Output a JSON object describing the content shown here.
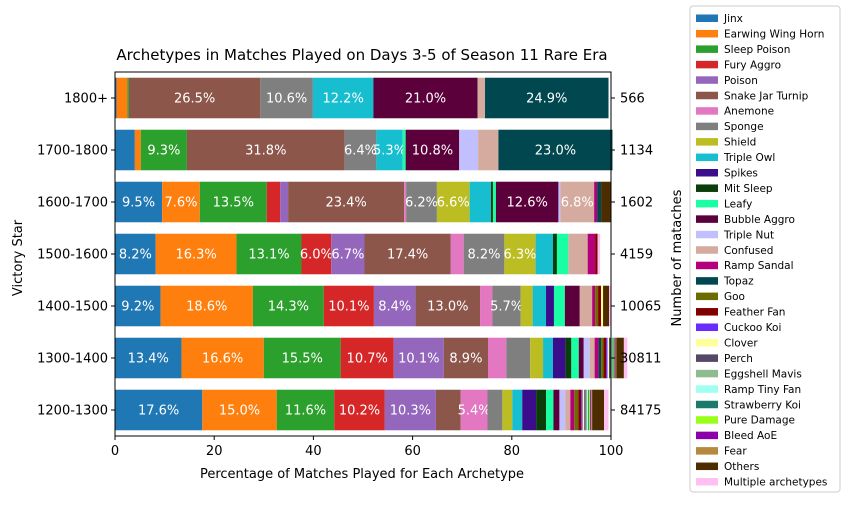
{
  "chart_data": {
    "type": "bar",
    "orientation": "horizontal",
    "stacked": true,
    "title": "Archetypes in Matches Played on Days 3-5 of Season 11 Rare Era",
    "xlabel": "Percentage of Matches Played for Each Archetype",
    "ylabel": "Victory Star",
    "y2label": "Number of mataches",
    "xlim": [
      0,
      100
    ],
    "xticks": [
      "0",
      "20",
      "40",
      "60",
      "80",
      "100"
    ],
    "categories": [
      "1200-1300",
      "1300-1400",
      "1400-1500",
      "1500-1600",
      "1600-1700",
      "1700-1800",
      "1800+"
    ],
    "match_counts": [
      "84175",
      "30811",
      "10065",
      "4159",
      "1602",
      "1134",
      "566"
    ],
    "legend_position": "outside-right",
    "grid": false,
    "series": [
      {
        "name": "Jinx",
        "color": "#1f77b4",
        "values": [
          17.6,
          13.4,
          9.2,
          8.2,
          9.5,
          4.0,
          0.3
        ],
        "labels": [
          "17.6%",
          "13.4%",
          "9.2%",
          "8.2%",
          "9.5%",
          "",
          ""
        ]
      },
      {
        "name": "Earwing Wing Horn",
        "color": "#ff7f0e",
        "values": [
          15.0,
          16.6,
          18.6,
          16.3,
          7.6,
          1.2,
          2.2
        ],
        "labels": [
          "15.0%",
          "16.6%",
          "18.6%",
          "16.3%",
          "7.6%",
          "",
          ""
        ]
      },
      {
        "name": "Sleep Poison",
        "color": "#2ca02c",
        "values": [
          11.6,
          15.5,
          14.3,
          13.1,
          13.5,
          9.3,
          0.3
        ],
        "labels": [
          "11.6%",
          "15.5%",
          "14.3%",
          "13.1%",
          "13.5%",
          "9.3%",
          ""
        ]
      },
      {
        "name": "Fury Aggro",
        "color": "#d62728",
        "values": [
          10.2,
          10.7,
          10.1,
          6.0,
          2.7,
          0.0,
          0.0
        ],
        "labels": [
          "10.2%",
          "10.7%",
          "10.1%",
          "6.0%",
          "",
          "",
          ""
        ]
      },
      {
        "name": "Poison",
        "color": "#9467bd",
        "values": [
          10.3,
          10.1,
          8.4,
          6.7,
          1.6,
          0.0,
          0.0
        ],
        "labels": [
          "10.3%",
          "10.1%",
          "8.4%",
          "6.7%",
          "",
          "",
          ""
        ]
      },
      {
        "name": "Snake Jar Turnip",
        "color": "#8c564b",
        "values": [
          5.0,
          8.9,
          13.0,
          17.4,
          23.4,
          31.8,
          26.5
        ],
        "labels": [
          "",
          "8.9%",
          "13.0%",
          "17.4%",
          "23.4%",
          "31.8%",
          "26.5%"
        ]
      },
      {
        "name": "Anemone",
        "color": "#e377c2",
        "values": [
          5.4,
          3.7,
          2.5,
          2.6,
          0.4,
          0.0,
          0.0
        ],
        "labels": [
          "5.4%",
          "",
          "",
          "",
          "",
          "",
          ""
        ]
      },
      {
        "name": "Sponge",
        "color": "#7f7f7f",
        "values": [
          3.0,
          4.8,
          5.7,
          8.2,
          6.2,
          6.4,
          10.6
        ],
        "labels": [
          "",
          "",
          "5.7%",
          "8.2%",
          "6.2%",
          "6.4%",
          "10.6%"
        ]
      },
      {
        "name": "Shield",
        "color": "#bcbd22",
        "values": [
          2.0,
          2.6,
          2.4,
          6.3,
          6.6,
          0.0,
          0.0
        ],
        "labels": [
          "",
          "",
          "",
          "6.3%",
          "6.6%",
          "",
          ""
        ]
      },
      {
        "name": "Triple Owl",
        "color": "#17becf",
        "values": [
          2.0,
          2.0,
          2.7,
          3.5,
          4.3,
          5.3,
          12.2
        ],
        "labels": [
          "",
          "",
          "",
          "",
          "",
          "5.3%",
          "12.2%"
        ]
      },
      {
        "name": "Spikes",
        "color": "#3b0d8c",
        "values": [
          2.8,
          2.5,
          1.6,
          0.0,
          0.0,
          0.0,
          0.0
        ],
        "labels": [
          "",
          "",
          "",
          "",
          "",
          "",
          ""
        ]
      },
      {
        "name": "Mit Sleep",
        "color": "#0b3d0b",
        "values": [
          2.0,
          1.2,
          0.0,
          0.8,
          0.4,
          0.0,
          0.0
        ],
        "labels": [
          "",
          "",
          "",
          "",
          "",
          "",
          ""
        ]
      },
      {
        "name": "Leafy",
        "color": "#1affa3",
        "values": [
          1.5,
          1.5,
          2.2,
          2.3,
          0.6,
          0.6,
          0.0
        ],
        "labels": [
          "",
          "",
          "",
          "",
          "",
          "",
          ""
        ]
      },
      {
        "name": "Bubble Aggro",
        "color": "#5c003b",
        "values": [
          1.2,
          1.0,
          3.0,
          0.0,
          12.6,
          10.8,
          21.0
        ],
        "labels": [
          "",
          "",
          "",
          "",
          "12.6%",
          "10.8%",
          "21.0%"
        ]
      },
      {
        "name": "Triple Nut",
        "color": "#c2bfff",
        "values": [
          1.2,
          1.2,
          0.0,
          0.0,
          0.4,
          3.8,
          0.0
        ],
        "labels": [
          "",
          "",
          "",
          "",
          "",
          "",
          ""
        ]
      },
      {
        "name": "Confused",
        "color": "#d5aa9f",
        "values": [
          1.0,
          1.0,
          2.5,
          3.9,
          6.8,
          4.1,
          1.5
        ],
        "labels": [
          "",
          "",
          "",
          "",
          "6.8%",
          "",
          ""
        ]
      },
      {
        "name": "Ramp Sandal",
        "color": "#b5007c",
        "values": [
          0.8,
          0.8,
          0.6,
          1.5,
          0.6,
          0.0,
          0.0
        ],
        "labels": [
          "",
          "",
          "",
          "",
          "",
          "",
          ""
        ]
      },
      {
        "name": "Topaz",
        "color": "#00474f",
        "values": [
          0.0,
          0.5,
          0.0,
          0.0,
          0.8,
          23.0,
          24.9
        ],
        "labels": [
          "",
          "",
          "",
          "",
          "",
          "23.0%",
          "24.9%"
        ]
      },
      {
        "name": "Goo",
        "color": "#6b6b00",
        "values": [
          0.8,
          0.5,
          0.6,
          0.0,
          0.0,
          0.0,
          0.0
        ],
        "labels": [
          "",
          "",
          "",
          "",
          "",
          "",
          ""
        ]
      },
      {
        "name": "Feather Fan",
        "color": "#800000",
        "values": [
          0.6,
          0.5,
          0.6,
          0.5,
          0.0,
          0.0,
          0.0
        ],
        "labels": [
          "",
          "",
          "",
          "",
          "",
          "",
          ""
        ]
      },
      {
        "name": "Cuckoo Koi",
        "color": "#6a2bff",
        "values": [
          0.3,
          0.3,
          0.0,
          0.0,
          0.0,
          0.0,
          0.0
        ],
        "labels": [
          "",
          "",
          "",
          "",
          "",
          "",
          ""
        ]
      },
      {
        "name": "Clover",
        "color": "#ffff99",
        "values": [
          0.3,
          0.3,
          0.4,
          0.0,
          0.0,
          0.0,
          0.0
        ],
        "labels": [
          "",
          "",
          "",
          "",
          "",
          "",
          ""
        ]
      },
      {
        "name": "Perch",
        "color": "#574766",
        "values": [
          0.3,
          0.3,
          0.0,
          0.0,
          0.0,
          0.0,
          0.0
        ],
        "labels": [
          "",
          "",
          "",
          "",
          "",
          "",
          ""
        ]
      },
      {
        "name": "Eggshell Mavis",
        "color": "#8fbc8f",
        "values": [
          0.3,
          0.2,
          0.0,
          0.0,
          0.0,
          0.0,
          0.0
        ],
        "labels": [
          "",
          "",
          "",
          "",
          "",
          "",
          ""
        ]
      },
      {
        "name": "Ramp Tiny Fan",
        "color": "#a0fff0",
        "values": [
          0.2,
          0.2,
          0.0,
          0.0,
          0.0,
          0.0,
          0.0
        ],
        "labels": [
          "",
          "",
          "",
          "",
          "",
          "",
          ""
        ]
      },
      {
        "name": "Strawberry Koi",
        "color": "#1a7a6b",
        "values": [
          0.2,
          0.2,
          0.0,
          0.0,
          0.0,
          0.0,
          0.0
        ],
        "labels": [
          "",
          "",
          "",
          "",
          "",
          "",
          ""
        ]
      },
      {
        "name": "Pure Damage",
        "color": "#99ff1a",
        "values": [
          0.2,
          0.2,
          0.0,
          0.0,
          0.0,
          0.0,
          0.0
        ],
        "labels": [
          "",
          "",
          "",
          "",
          "",
          "",
          ""
        ]
      },
      {
        "name": "Bleed AoE",
        "color": "#8b00a8",
        "values": [
          0.2,
          0.2,
          0.0,
          0.0,
          0.0,
          0.0,
          0.0
        ],
        "labels": [
          "",
          "",
          "",
          "",
          "",
          "",
          ""
        ]
      },
      {
        "name": "Fear",
        "color": "#b58a3f",
        "values": [
          0.2,
          0.2,
          0.0,
          0.0,
          0.0,
          0.0,
          0.0
        ],
        "labels": [
          "",
          "",
          "",
          "",
          "",
          "",
          ""
        ]
      },
      {
        "name": "Others",
        "color": "#4d2c00",
        "values": [
          2.4,
          1.5,
          1.2,
          0.0,
          2.0,
          0.0,
          0.0
        ],
        "labels": [
          "",
          "",
          "",
          "",
          "",
          "",
          ""
        ]
      },
      {
        "name": "Multiple archetypes",
        "color": "#ffbff0",
        "values": [
          0.9,
          0.7,
          0.5,
          0.5,
          0.0,
          0.0,
          0.0
        ],
        "labels": [
          "",
          "",
          "",
          "",
          "",
          "",
          ""
        ]
      }
    ]
  }
}
